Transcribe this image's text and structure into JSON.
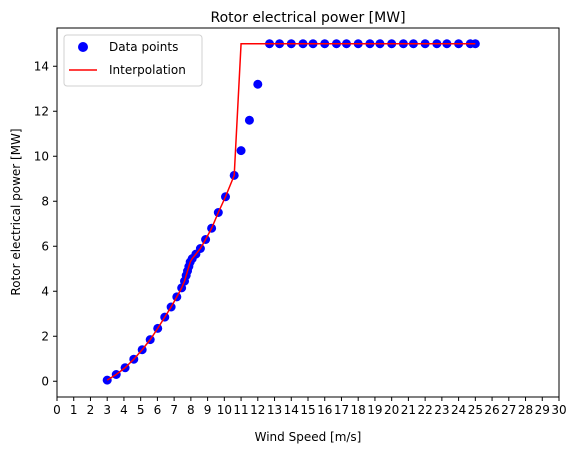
{
  "chart_data": {
    "type": "scatter",
    "title": "Rotor electrical power [MW]",
    "xlabel": "Wind Speed [m/s]",
    "ylabel": "Rotor electrical power [MW]",
    "xlim": [
      0,
      30
    ],
    "ylim": [
      -0.7,
      15.7
    ],
    "x_ticks": [
      0,
      1,
      2,
      3,
      4,
      5,
      6,
      7,
      8,
      9,
      10,
      11,
      12,
      13,
      14,
      15,
      16,
      17,
      18,
      19,
      20,
      21,
      22,
      23,
      24,
      25,
      26,
      27,
      28,
      29,
      30
    ],
    "y_ticks": [
      0,
      2,
      4,
      6,
      8,
      10,
      12,
      14
    ],
    "grid": false,
    "legend_position": "top-left",
    "series": [
      {
        "name": "Data points",
        "kind": "scatter",
        "color": "#0000ff",
        "x": [
          3.0,
          3.54,
          4.07,
          4.59,
          5.09,
          5.57,
          6.02,
          6.44,
          6.82,
          7.16,
          7.45,
          7.62,
          7.72,
          7.8,
          7.88,
          7.96,
          8.08,
          8.3,
          8.57,
          8.88,
          9.24,
          9.64,
          10.07,
          10.59,
          11.0,
          11.5,
          12.0,
          12.7,
          13.3,
          14.0,
          14.7,
          15.3,
          16.0,
          16.7,
          17.3,
          18.0,
          18.7,
          19.3,
          20.0,
          20.7,
          21.3,
          22.0,
          22.7,
          23.3,
          24.0,
          24.7,
          25.0
        ],
        "y": [
          0.05,
          0.3,
          0.6,
          0.98,
          1.4,
          1.85,
          2.35,
          2.85,
          3.3,
          3.75,
          4.15,
          4.45,
          4.7,
          4.9,
          5.1,
          5.3,
          5.45,
          5.65,
          5.9,
          6.3,
          6.8,
          7.5,
          8.2,
          9.15,
          10.25,
          11.6,
          13.2,
          15.0,
          15.0,
          15.0,
          15.0,
          15.0,
          15.0,
          15.0,
          15.0,
          15.0,
          15.0,
          15.0,
          15.0,
          15.0,
          15.0,
          15.0,
          15.0,
          15.0,
          15.0,
          15.0,
          15.0
        ]
      },
      {
        "name": "Interpolation",
        "kind": "line",
        "color": "#ff0000",
        "x": [
          3.0,
          3.54,
          4.07,
          4.59,
          5.09,
          5.57,
          6.02,
          6.44,
          6.82,
          7.16,
          7.45,
          7.62,
          7.72,
          7.8,
          7.88,
          7.96,
          8.08,
          8.3,
          8.57,
          8.88,
          9.24,
          9.64,
          10.07,
          10.59,
          11.0,
          25.0
        ],
        "y": [
          0.05,
          0.3,
          0.6,
          0.98,
          1.4,
          1.85,
          2.35,
          2.85,
          3.3,
          3.75,
          4.15,
          4.45,
          4.7,
          4.9,
          5.1,
          5.3,
          5.45,
          5.65,
          5.9,
          6.3,
          6.8,
          7.5,
          8.2,
          9.15,
          15.0,
          15.0
        ]
      }
    ]
  }
}
